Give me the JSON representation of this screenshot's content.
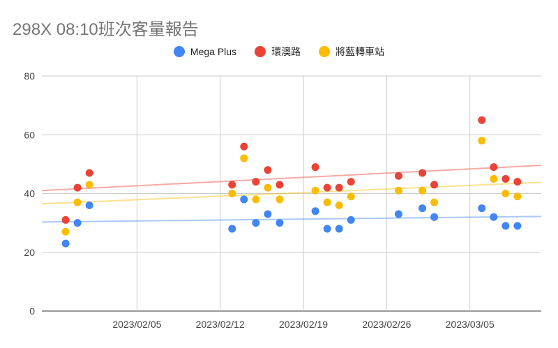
{
  "colors": {
    "Mega Plus": "#4285f4",
    "環澳路": "#ea4335",
    "將藍轉車站": "#fbbc04"
  },
  "chart_data": {
    "type": "scatter",
    "title": "298X 08:10班次客量報告",
    "xlabel": "",
    "ylabel": "",
    "legend_position": "top",
    "grid": true,
    "trendlines": true,
    "xlim": [
      "2023-01-28",
      "2023-03-11"
    ],
    "ylim": [
      0,
      80
    ],
    "y_ticks": [
      0,
      20,
      40,
      60,
      80
    ],
    "x_ticks": [
      "2023/02/05",
      "2023/02/12",
      "2023/02/19",
      "2023/02/26",
      "2023/03/05"
    ],
    "x_tick_dates": [
      "2023-02-05",
      "2023-02-12",
      "2023-02-19",
      "2023-02-26",
      "2023-03-05"
    ],
    "x": [
      "2023-01-30",
      "2023-01-31",
      "2023-02-01",
      "2023-02-13",
      "2023-02-14",
      "2023-02-15",
      "2023-02-16",
      "2023-02-17",
      "2023-02-20",
      "2023-02-21",
      "2023-02-22",
      "2023-02-23",
      "2023-02-27",
      "2023-03-01",
      "2023-03-02",
      "2023-03-06",
      "2023-03-07",
      "2023-03-08",
      "2023-03-09"
    ],
    "series": [
      {
        "name": "Mega Plus",
        "values": [
          23,
          30,
          36,
          28,
          38,
          30,
          33,
          30,
          34,
          28,
          28,
          31,
          33,
          35,
          32,
          35,
          32,
          29,
          29
        ],
        "trend": [
          30.3,
          32.2
        ]
      },
      {
        "name": "環澳路",
        "values": [
          31,
          42,
          47,
          43,
          56,
          44,
          48,
          43,
          49,
          42,
          42,
          44,
          46,
          47,
          43,
          65,
          49,
          45,
          44
        ],
        "trend": [
          41.0,
          49.6
        ]
      },
      {
        "name": "將藍轉車站",
        "values": [
          27,
          37,
          43,
          40,
          52,
          38,
          42,
          38,
          41,
          37,
          36,
          39,
          41,
          41,
          37,
          58,
          45,
          40,
          39
        ],
        "trend": [
          36.5,
          43.8
        ]
      }
    ]
  }
}
